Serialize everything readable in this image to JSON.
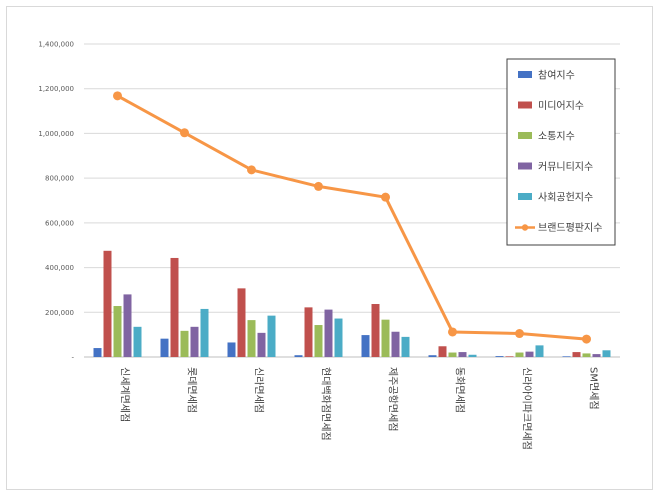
{
  "chart_data": {
    "type": "bar",
    "title": "",
    "xlabel": "",
    "ylabel": "",
    "ylim": [
      0,
      1400000
    ],
    "yticks": [
      0,
      200000,
      400000,
      600000,
      800000,
      1000000,
      1200000,
      1400000
    ],
    "ytick_labels": [
      "-",
      "200,000",
      "400,000",
      "600,000",
      "800,000",
      "1,000,000",
      "1,200,000",
      "1,400,000"
    ],
    "grid": true,
    "legend_position": "right",
    "categories": [
      "신세계면세점",
      "롯데면세점",
      "신라면세점",
      "현대백화점면세점",
      "제주공항면세점",
      "동화면세점",
      "신라아이파크면세점",
      "SM면세점"
    ],
    "series": [
      {
        "name": "참여지수",
        "kind": "bar",
        "color": "#4472c4",
        "values": [
          40000,
          82000,
          65000,
          8000,
          98000,
          8000,
          4000,
          3000
        ]
      },
      {
        "name": "미디어지수",
        "kind": "bar",
        "color": "#c0504d",
        "values": [
          475000,
          443000,
          307000,
          222000,
          237000,
          48000,
          3000,
          22000
        ]
      },
      {
        "name": "소통지수",
        "kind": "bar",
        "color": "#9bbb59",
        "values": [
          228000,
          117000,
          165000,
          143000,
          167000,
          20000,
          20000,
          16000
        ]
      },
      {
        "name": "커뮤니티지수",
        "kind": "bar",
        "color": "#8064a2",
        "values": [
          280000,
          135000,
          108000,
          212000,
          113000,
          22000,
          24000,
          13000
        ]
      },
      {
        "name": "사회공헌지수",
        "kind": "bar",
        "color": "#4bacc6",
        "values": [
          135000,
          215000,
          185000,
          172000,
          90000,
          10000,
          52000,
          30000
        ]
      },
      {
        "name": "브랜드평판지수",
        "kind": "line",
        "color": "#f79646",
        "values": [
          1168000,
          1003000,
          837000,
          763000,
          715000,
          112000,
          105000,
          80000
        ]
      }
    ]
  }
}
